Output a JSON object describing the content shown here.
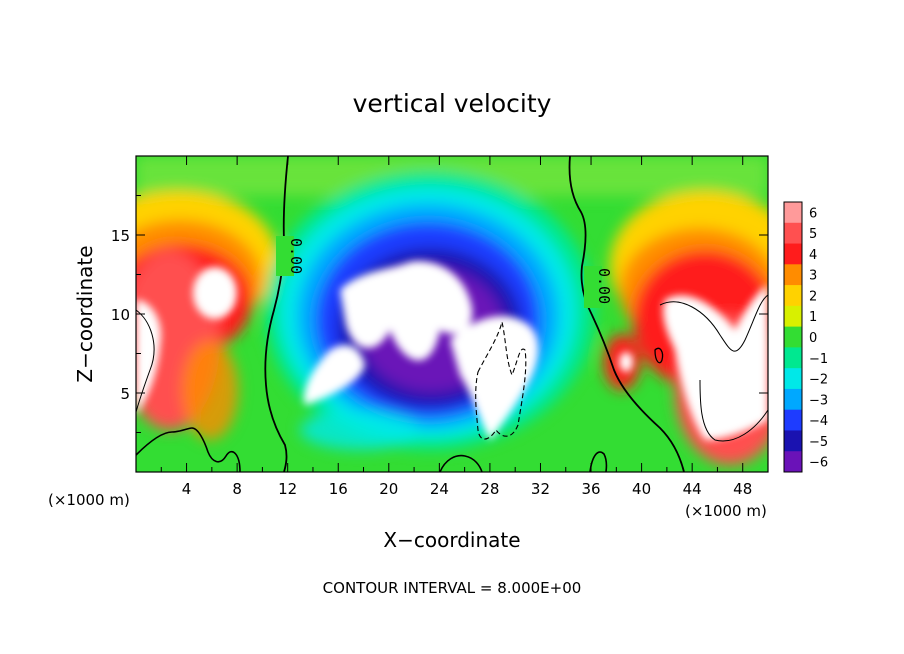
{
  "chart_data": {
    "type": "heatmap",
    "title": "vertical velocity",
    "xlabel": "X−coordinate",
    "ylabel": "Z−coordinate",
    "x_unit_left": "(×1000 m)",
    "x_unit_right": "(×1000 m)",
    "xlim": [
      0,
      50
    ],
    "ylim": [
      0,
      20
    ],
    "x_ticks": [
      4,
      8,
      12,
      16,
      20,
      24,
      28,
      32,
      36,
      40,
      44,
      48
    ],
    "y_ticks": [
      5,
      10,
      15
    ],
    "colorbar": {
      "levels": [
        6,
        5,
        4,
        3,
        2,
        1,
        0,
        -1,
        -2,
        -3,
        -4,
        -5,
        -6
      ],
      "labels": [
        "6",
        "5",
        "4",
        "3",
        "2",
        "1",
        "0",
        "−1",
        "−2",
        "−3",
        "−4",
        "−5",
        "−6"
      ],
      "colors": [
        "#ff9a9a",
        "#ff5050",
        "#ff1c1c",
        "#ff8c00",
        "#ffd200",
        "#d8f000",
        "#33dd33",
        "#00e890",
        "#00e8e8",
        "#00a8ff",
        "#1e3cff",
        "#1a12b0",
        "#6a12b8"
      ]
    },
    "contour_labels": [
      {
        "text": "0.00",
        "x": 11.7,
        "z": 11.9
      },
      {
        "text": "0.00",
        "x": 35.2,
        "z": 11.0
      }
    ],
    "footnote": "CONTOUR INTERVAL = 8.000E+00"
  }
}
